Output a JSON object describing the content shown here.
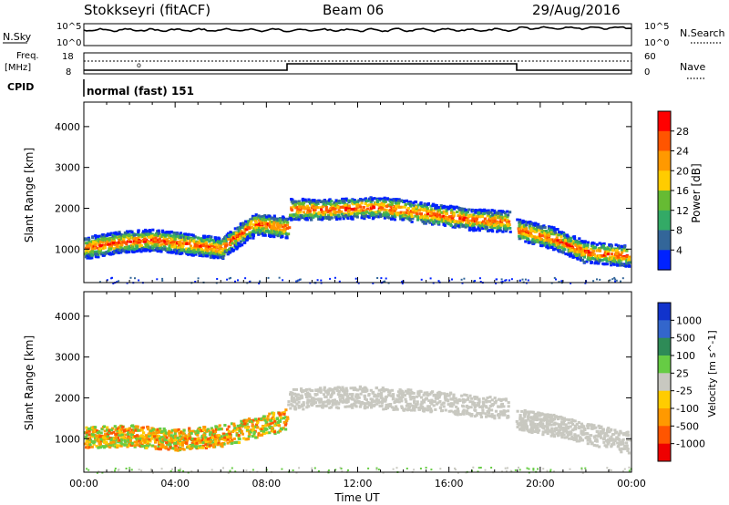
{
  "header": {
    "station": "Stokkseyri (fitACF)",
    "beam": "Beam 06",
    "date": "29/Aug/2016"
  },
  "top_panels": {
    "nsky_label": "N.Sky",
    "nsky_ticks": [
      "10^5",
      "10^0"
    ],
    "nsearch_label": "N.Search",
    "nsearch_ticks": [
      "10^5",
      "10^0"
    ],
    "freq_label_1": "Freq.",
    "freq_label_2": "[MHz]",
    "freq_ticks": [
      "18",
      "8"
    ],
    "nave_label": "Nave",
    "nave_ticks": [
      "60",
      "0"
    ],
    "cpid_label": "CPID",
    "cpid_value": "normal (fast) 151"
  },
  "chart_data": [
    {
      "type": "heatmap",
      "panel": "power",
      "xlabel": "",
      "ylabel": "Slant Range [km]",
      "x_ticks": [
        "00:00",
        "04:00",
        "08:00",
        "12:00",
        "16:00",
        "20:00",
        "00:00"
      ],
      "xlim_hours": [
        0,
        24
      ],
      "ylim_km": [
        180,
        4600
      ],
      "y_ticks": [
        1000,
        2000,
        3000,
        4000
      ],
      "colorbar_label": "Power [dB]",
      "colorbar_ticks": [
        "28",
        "24",
        "20",
        "16",
        "12",
        "8",
        "4"
      ],
      "colorbar_colors": [
        "#ff0000",
        "#ff5500",
        "#ff9900",
        "#ffcc00",
        "#66bb33",
        "#33aa66",
        "#336699",
        "#0022ff"
      ],
      "series": [
        {
          "x": [
            0.0,
            1.5,
            3.0,
            4.5,
            6.0,
            7.5,
            8.9
          ],
          "y": [
            1050,
            1200,
            1250,
            1150,
            1050,
            1650,
            1550
          ]
        },
        {
          "x": [
            9.0,
            11.0,
            13.0,
            15.0,
            17.0,
            18.6
          ],
          "y": [
            2000,
            2000,
            2050,
            1900,
            1750,
            1700
          ]
        },
        {
          "x": [
            19.0,
            20.5,
            22.0,
            24.0
          ],
          "y": [
            1500,
            1300,
            950,
            850
          ]
        }
      ]
    },
    {
      "type": "heatmap",
      "panel": "velocity",
      "xlabel": "Time UT",
      "ylabel": "Slant Range [km]",
      "x_ticks": [
        "00:00",
        "04:00",
        "08:00",
        "12:00",
        "16:00",
        "20:00",
        "00:00"
      ],
      "xlim_hours": [
        0,
        24
      ],
      "ylim_km": [
        180,
        4600
      ],
      "y_ticks": [
        1000,
        2000,
        3000,
        4000
      ],
      "colorbar_label": "Velocity [m s^-1]",
      "colorbar_ticks": [
        "1000",
        "500",
        "100",
        "25",
        "-25",
        "-100",
        "-500",
        "-1000"
      ],
      "colorbar_colors": [
        "#1133cc",
        "#3366cc",
        "#2e8b57",
        "#66cc44",
        "#c8c8c0",
        "#ffcc00",
        "#ff9900",
        "#ff5500",
        "#ee0000"
      ],
      "series": [
        {
          "x": [
            0.0,
            2.0,
            4.0,
            6.0,
            8.9
          ],
          "y": [
            1050,
            1100,
            1000,
            1100,
            1500
          ]
        },
        {
          "x": [
            9.0,
            12.0,
            15.0,
            18.6
          ],
          "y": [
            2000,
            2050,
            1950,
            1750
          ]
        },
        {
          "x": [
            19.0,
            21.0,
            24.0
          ],
          "y": [
            1500,
            1300,
            900
          ]
        }
      ]
    }
  ]
}
